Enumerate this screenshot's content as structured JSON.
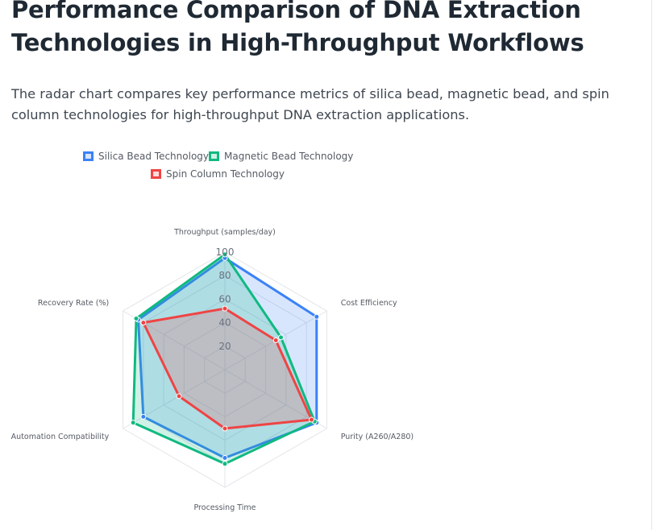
{
  "page": {
    "title": "Performance Comparison of DNA Extraction Technologies in High-Throughput Workflows",
    "description": "The radar chart compares key performance metrics of silica bead, magnetic bead, and spin column technologies for high-throughput DNA extraction applications."
  },
  "chart_data": {
    "type": "radar",
    "axes": [
      "Throughput (samples/day)",
      "Cost Efficiency",
      "Purity (A260/A280)",
      "Processing Time",
      "Automation Compatibility",
      "Recovery Rate (%)"
    ],
    "r_ticks": [
      20,
      40,
      60,
      80,
      100
    ],
    "r_range": [
      0,
      100
    ],
    "legend_position": "top",
    "series": [
      {
        "name": "Silica Bead Technology",
        "values": [
          95,
          90,
          90,
          75,
          80,
          85
        ],
        "color": "#3b82f6",
        "fill": "rgba(59,130,246,0.2)"
      },
      {
        "name": "Magnetic Bead Technology",
        "values": [
          98,
          55,
          88,
          80,
          90,
          87
        ],
        "color": "#10b981",
        "fill": "rgba(16,185,129,0.2)"
      },
      {
        "name": "Spin Column Technology",
        "values": [
          52,
          50,
          85,
          50,
          45,
          80
        ],
        "color": "#ef4444",
        "fill": "rgba(239,68,68,0.2)"
      }
    ]
  }
}
